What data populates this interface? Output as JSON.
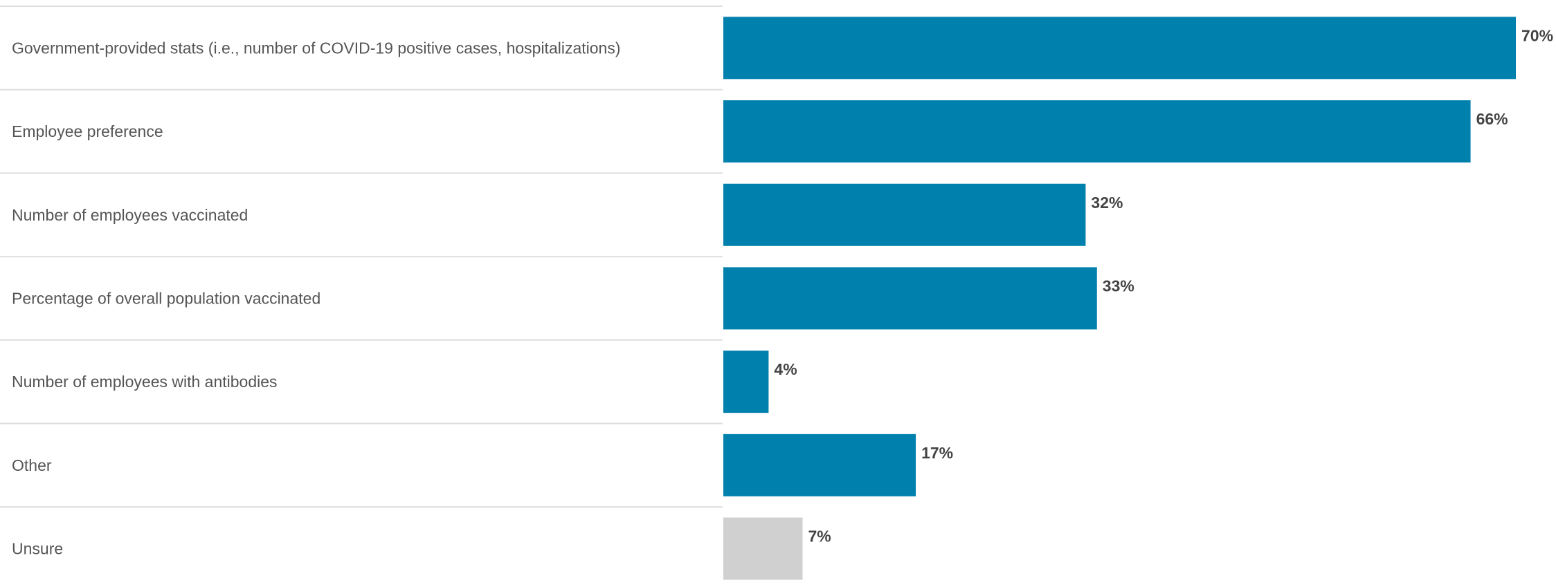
{
  "chart_data": {
    "type": "bar",
    "orientation": "horizontal",
    "categories": [
      "Government-provided stats (i.e., number of COVID-19 positive cases, hospitalizations)",
      "Employee preference",
      "Number of employees vaccinated",
      "Percentage of overall population vaccinated",
      "Number of employees with antibodies",
      "Other",
      "Unsure"
    ],
    "values": [
      70,
      66,
      32,
      33,
      4,
      17,
      7
    ],
    "value_labels": [
      "70%",
      "66%",
      "32%",
      "33%",
      "4%",
      "17%",
      "7%"
    ],
    "unit": "%",
    "xlim": [
      0,
      70
    ],
    "grid": false,
    "legend": "none",
    "colors": {
      "bar": "#0080ac",
      "bar_unsure": "#d0d0d0",
      "divider": "#dedede",
      "category_text": "#555555",
      "value_text": "#444444"
    },
    "bar_colors": [
      "#0080ac",
      "#0080ac",
      "#0080ac",
      "#0080ac",
      "#0080ac",
      "#0080ac",
      "#d0d0d0"
    ]
  }
}
